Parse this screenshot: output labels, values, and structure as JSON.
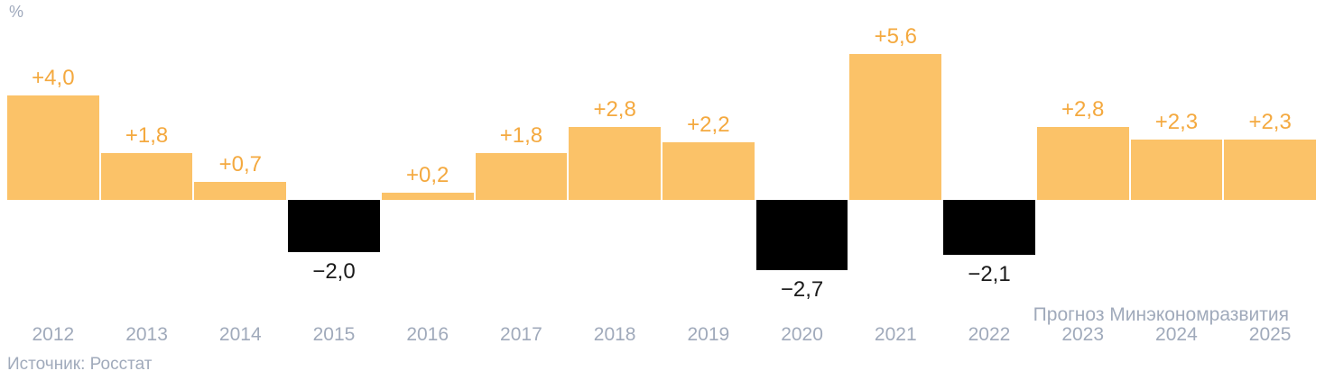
{
  "chart_data": {
    "type": "bar",
    "title": "",
    "unit_label": "%",
    "xlabel": "",
    "ylabel": "%",
    "ylim": [
      -3.2,
      6.2
    ],
    "grid": false,
    "legend": "none",
    "categories": [
      "2012",
      "2013",
      "2014",
      "2015",
      "2016",
      "2017",
      "2018",
      "2019",
      "2020",
      "2021",
      "2022",
      "2023",
      "2024",
      "2025"
    ],
    "values": [
      4.0,
      1.8,
      0.7,
      -2.0,
      0.2,
      1.8,
      2.8,
      2.2,
      -2.7,
      5.6,
      -2.1,
      2.8,
      2.3,
      2.3
    ],
    "value_labels": [
      "+4,0",
      "+1,8",
      "+0,7",
      "−2,0",
      "+0,2",
      "+1,8",
      "+2,8",
      "+2,2",
      "−2,7",
      "+5,6",
      "−2,1",
      "+2,8",
      "+2,3",
      "+2,3"
    ],
    "forecast_years": [
      "2023",
      "2024",
      "2025"
    ],
    "forecast_note": "Прогноз Минэкономразвития",
    "source": "Источник: Росстат",
    "colors": {
      "positive_bar": "#FBC268",
      "negative_bar": "#000000",
      "positive_label": "#F4A93F",
      "negative_label": "#1A1A1A",
      "axis_text": "#A0AABB"
    }
  }
}
